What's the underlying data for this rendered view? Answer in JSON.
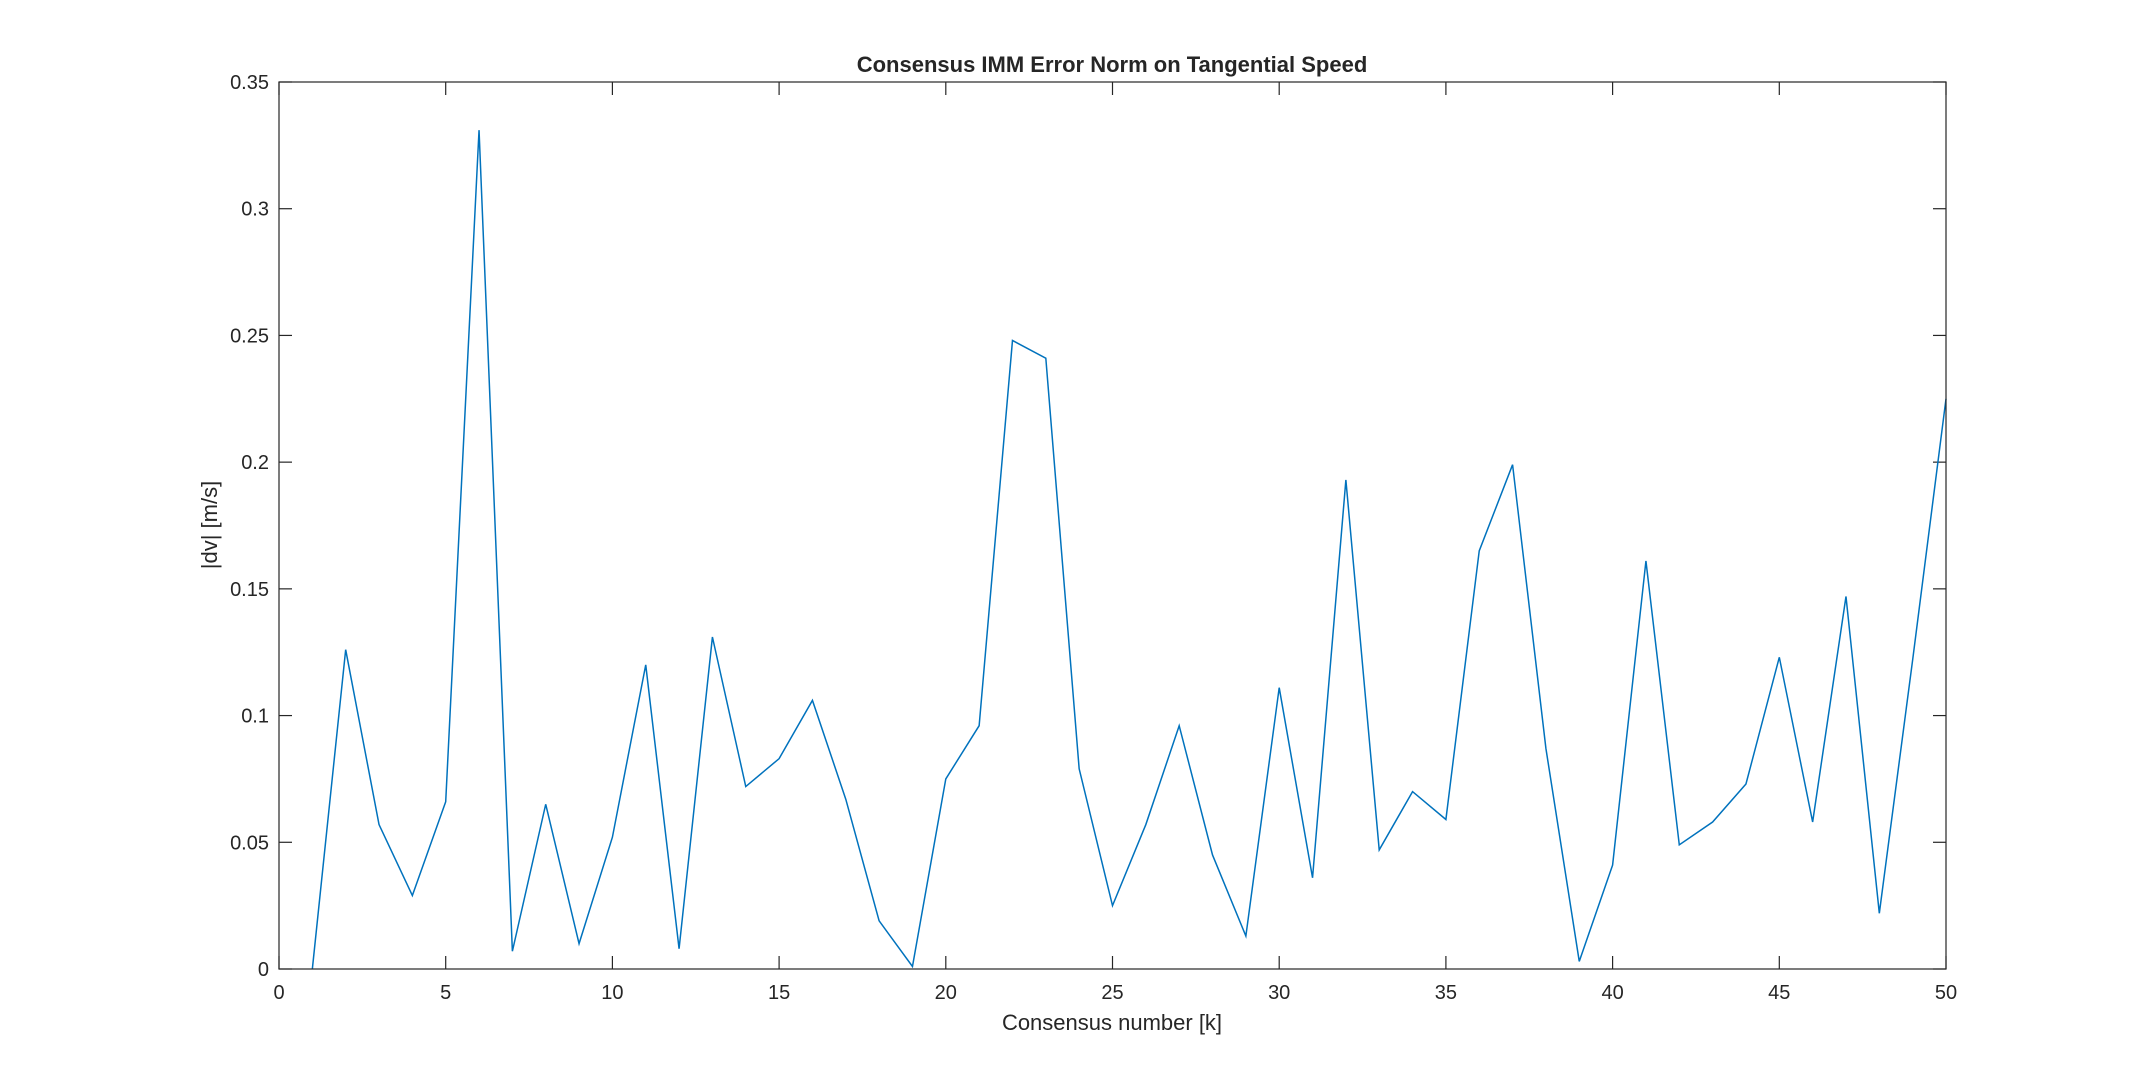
{
  "chart_data": {
    "type": "line",
    "title": "Consensus IMM Error Norm on Tangential Speed",
    "xlabel": "Consensus number [k]",
    "ylabel": "|dv| [m/s]",
    "xlim": [
      0,
      50
    ],
    "ylim": [
      0,
      0.35
    ],
    "xticks": [
      "0",
      "5",
      "10",
      "15",
      "20",
      "25",
      "30",
      "35",
      "40",
      "45",
      "50"
    ],
    "yticks": [
      "0",
      "0.05",
      "0.1",
      "0.15",
      "0.2",
      "0.25",
      "0.3",
      "0.35"
    ],
    "grid": false,
    "series": [
      {
        "color": "#0072BD",
        "x": [
          1,
          2,
          3,
          4,
          5,
          6,
          7,
          8,
          9,
          10,
          11,
          12,
          13,
          14,
          15,
          16,
          17,
          18,
          19,
          20,
          21,
          22,
          23,
          24,
          25,
          26,
          27,
          28,
          29,
          30,
          31,
          32,
          33,
          34,
          35,
          36,
          37,
          38,
          39,
          40,
          41,
          42,
          43,
          44,
          45,
          46,
          47,
          48,
          49,
          50
        ],
        "y": [
          0,
          0.126,
          0.057,
          0.029,
          0.066,
          0.331,
          0.007,
          0.065,
          0.01,
          0.052,
          0.12,
          0.008,
          0.131,
          0.072,
          0.083,
          0.106,
          0.067,
          0.019,
          0.001,
          0.075,
          0.096,
          0.248,
          0.241,
          0.079,
          0.025,
          0.057,
          0.096,
          0.045,
          0.013,
          0.111,
          0.036,
          0.193,
          0.047,
          0.07,
          0.059,
          0.165,
          0.199,
          0.087,
          0.003,
          0.041,
          0.161,
          0.049,
          0.058,
          0.073,
          0.123,
          0.058,
          0.147,
          0.022,
          0.122,
          0.225
        ]
      }
    ]
  }
}
